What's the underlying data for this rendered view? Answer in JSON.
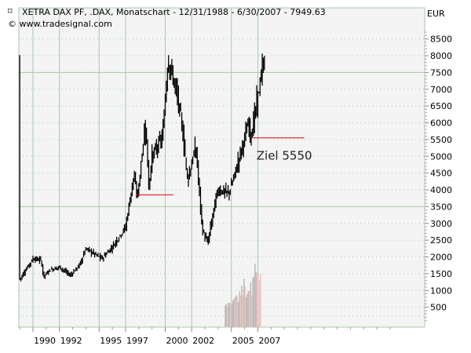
{
  "header": {
    "title": "XETRA DAX PF, .DAX, Monatschart - 12/31/1988 - 6/30/2007 - 7949.63",
    "copyright": "© www.tradesignal.com",
    "currency": "EUR",
    "symbol_icon": "chart-marker-icon"
  },
  "colors": {
    "bars": "#000000",
    "target_line": "#e00000",
    "grid_solid": "#a8c8a8",
    "grid_dotted": "#a8c8a8",
    "plot_bg": "#f4f4f4",
    "volume_gray": "#bdbdbd",
    "volume_pink": "#f0c4c4"
  },
  "chart_data": {
    "type": "ohlc-bar",
    "title": "XETRA DAX PF, .DAX, Monatschart - 12/31/1988 - 6/30/2007 - 7949.63",
    "ylabel": "EUR",
    "ylim": [
      0,
      8800
    ],
    "xlim": [
      1988.92,
      2019.6
    ],
    "y_ticks": [
      500,
      1000,
      1500,
      2000,
      2500,
      3000,
      3500,
      4000,
      4500,
      5000,
      5500,
      6000,
      6500,
      7000,
      7500,
      8000,
      8500
    ],
    "x_ticks": [
      {
        "year": 1990,
        "label": "1990"
      },
      {
        "year": 1992,
        "label": "1992"
      },
      {
        "year": 1995,
        "label": "1995"
      },
      {
        "year": 1997,
        "label": "1997"
      },
      {
        "year": 2000,
        "label": "2000"
      },
      {
        "year": 2002,
        "label": "2002"
      },
      {
        "year": 2005,
        "label": "2005"
      },
      {
        "year": 2007,
        "label": "2007"
      }
    ],
    "solid_hlines": [
      7500,
      3500
    ],
    "close_keypoints": [
      [
        1989.0,
        1330
      ],
      [
        1989.5,
        1650
      ],
      [
        1990.0,
        1950
      ],
      [
        1990.6,
        1900
      ],
      [
        1990.8,
        1400
      ],
      [
        1991.2,
        1600
      ],
      [
        1992.0,
        1700
      ],
      [
        1992.8,
        1450
      ],
      [
        1993.5,
        1750
      ],
      [
        1994.0,
        2250
      ],
      [
        1995.2,
        1950
      ],
      [
        1996.0,
        2300
      ],
      [
        1997.0,
        2900
      ],
      [
        1997.6,
        4400
      ],
      [
        1997.9,
        3800
      ],
      [
        1998.5,
        6000
      ],
      [
        1998.75,
        4100
      ],
      [
        1999.0,
        5000
      ],
      [
        1999.8,
        5600
      ],
      [
        2000.2,
        7900
      ],
      [
        2000.8,
        7000
      ],
      [
        2001.2,
        6100
      ],
      [
        2001.7,
        4300
      ],
      [
        2002.3,
        5300
      ],
      [
        2002.8,
        2800
      ],
      [
        2003.2,
        2400
      ],
      [
        2003.8,
        3700
      ],
      [
        2004.0,
        4000
      ],
      [
        2004.8,
        3900
      ],
      [
        2005.2,
        4400
      ],
      [
        2006.3,
        6000
      ],
      [
        2006.5,
        5600
      ],
      [
        2007.0,
        6800
      ],
      [
        2007.5,
        7950
      ]
    ],
    "volume": {
      "start_year": 2004.55,
      "values": [
        550,
        600,
        480,
        630,
        630,
        600,
        580,
        700,
        760,
        820,
        860,
        800,
        650,
        960,
        850,
        1150,
        860,
        1350,
        1120,
        800,
        900,
        980,
        1000,
        1250,
        850,
        1380,
        1420,
        1800,
        1550,
        1500,
        1480,
        1300,
        1500
      ],
      "up_flags": [
        0,
        0,
        1,
        0,
        0,
        1,
        0,
        0,
        0,
        1,
        0,
        1,
        0,
        0,
        1,
        0,
        1,
        0,
        1,
        0,
        0,
        0,
        1,
        0,
        1,
        0,
        0,
        0,
        0,
        1,
        1,
        1,
        1
      ]
    },
    "annotations": [
      {
        "type": "hline",
        "y": 3850,
        "x_from": 1997.8,
        "x_to": 2000.6
      },
      {
        "type": "hline",
        "y": 5550,
        "x_from": 2006.6,
        "x_to": 2010.5
      },
      {
        "type": "text",
        "text": "Ziel 5550",
        "x": 2006.9,
        "y": 5000
      }
    ]
  }
}
